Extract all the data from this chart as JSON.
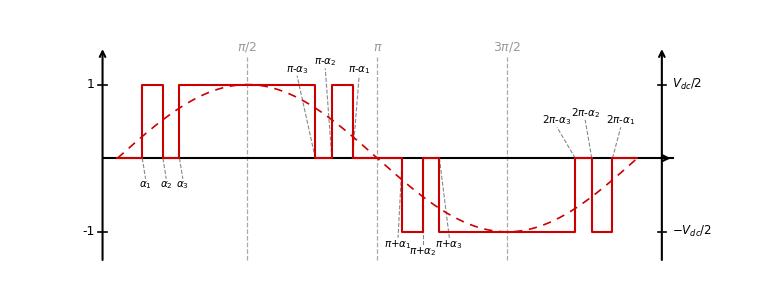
{
  "alpha1": 0.3,
  "alpha2": 0.55,
  "alpha3": 0.75,
  "pi": 3.14159265358979,
  "xlim": [
    -0.25,
    7.0
  ],
  "ylim": [
    -1.55,
    1.65
  ],
  "signal_color": "#cc0000",
  "sine_color": "#cc0000",
  "ann_color": "#888888",
  "vline_color": "#aaaaaa",
  "background_color": "#ffffff",
  "ann_fs": 7.5,
  "axis_label_fs": 9,
  "tick_label_fs": 9
}
